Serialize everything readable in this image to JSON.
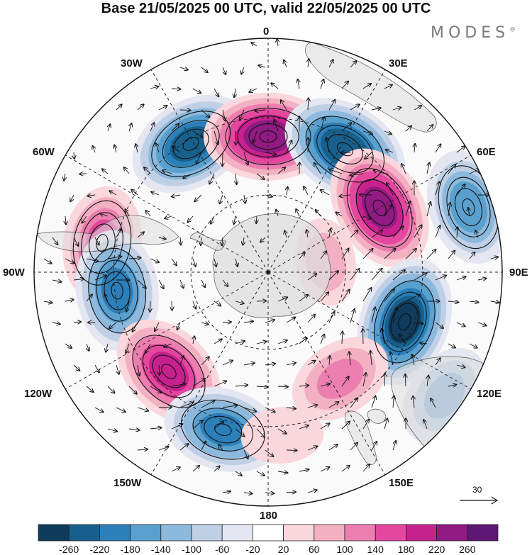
{
  "title": "Base 21/05/2025 00 UTC, valid 22/05/2025 00 UTC",
  "brand": "MODES",
  "brand_mark": "®",
  "projection": "south-polar-stereographic",
  "longitude_labels": {
    "n": "0",
    "ne": "30E",
    "ene": "60E",
    "e": "90E",
    "ese": "120E",
    "se": "150E",
    "s": "180",
    "sw": "150W",
    "wsw": "120W",
    "w": "90W",
    "wnw": "60W",
    "nw": "30W"
  },
  "reference_vector": {
    "label": "30",
    "icon": "arrow-right-icon"
  },
  "colorbar": {
    "levels": [
      "-260",
      "-220",
      "-180",
      "-140",
      "-100",
      "-60",
      "-20",
      "20",
      "60",
      "100",
      "140",
      "180",
      "220",
      "260"
    ],
    "colors": [
      "#0f3b5c",
      "#17608c",
      "#2c7fb8",
      "#5aa0cf",
      "#8db9dd",
      "#bfd0e6",
      "#e4e6f1",
      "#ffffff",
      "#f9d7dc",
      "#f3b0c2",
      "#ec7fb0",
      "#e3489e",
      "#c7218e",
      "#911a83",
      "#5e1673"
    ]
  },
  "anomaly_centers": [
    {
      "lon": -31,
      "dist": 0.64,
      "value": -230
    },
    {
      "lon": 0,
      "dist": 0.58,
      "value": 250
    },
    {
      "lon": 32,
      "dist": 0.62,
      "value": -260
    },
    {
      "lon": 60,
      "dist": 0.55,
      "value": 240
    },
    {
      "lon": 72,
      "dist": 0.9,
      "value": -170
    },
    {
      "lon": 110,
      "dist": 0.62,
      "value": -265
    },
    {
      "lon": -80,
      "dist": 0.72,
      "value": 160
    },
    {
      "lon": -97,
      "dist": 0.65,
      "value": -200
    },
    {
      "lon": -135,
      "dist": 0.6,
      "value": 200
    },
    {
      "lon": -164,
      "dist": 0.7,
      "value": -190
    },
    {
      "lon": 146,
      "dist": 0.55,
      "value": 120
    },
    {
      "lon": 125,
      "dist": 0.92,
      "value": -120
    },
    {
      "lon": 175,
      "dist": 0.7,
      "value": 60
    },
    {
      "lon": 80,
      "dist": 0.25,
      "value": 70
    }
  ]
}
